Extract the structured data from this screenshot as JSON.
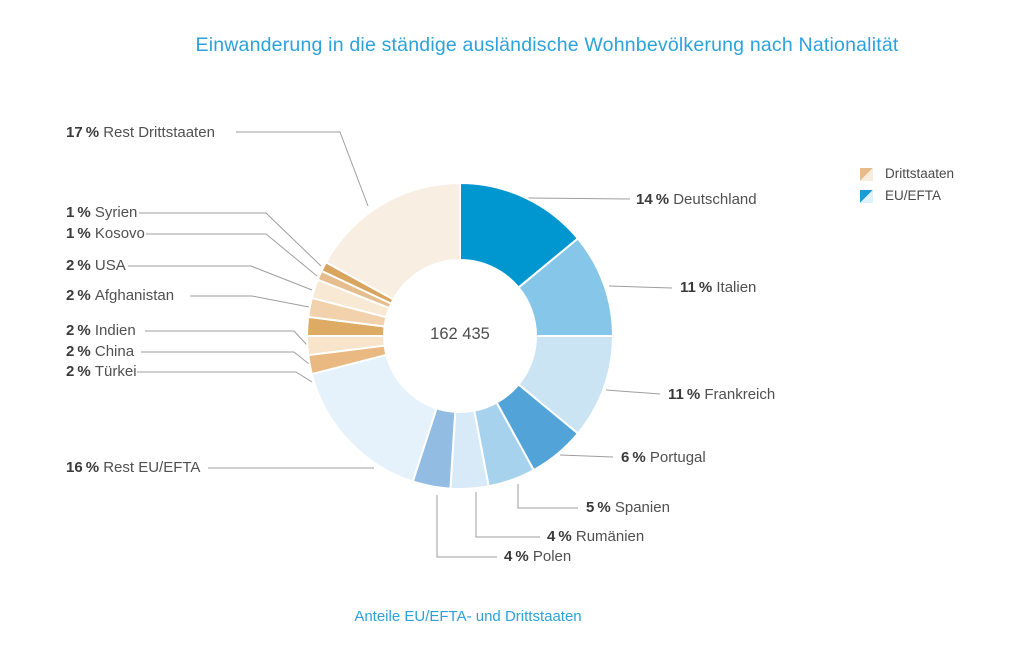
{
  "title": "Einwanderung in die ständige ausländische Wohnbevölkerung nach Nationalität",
  "subtitle": "Anteile EU/EFTA- und Drittstaaten",
  "legend": {
    "items": [
      {
        "label": "Drittstaaten",
        "color_dark": "#E8BC8A",
        "color_light": "#F8ECDC"
      },
      {
        "label": "EU/EFTA",
        "color_dark": "#1C9CD6",
        "color_light": "#DFF1FB"
      }
    ]
  },
  "colors": {
    "title_accent": "#2CA2DB",
    "leader_line": "#9E9E9E",
    "label_percent": "#3A3A3A",
    "label_name": "#505050",
    "center_text": "#4D4D4D"
  },
  "chart_data": {
    "type": "pie",
    "subtype": "donut",
    "title": "Einwanderung in die ständige ausländische Wohnbevölkerung nach Nationalität",
    "caption": "Anteile EU/EFTA- und Drittstaaten",
    "center_label": "162 435",
    "units": "%",
    "start_angle_deg": 0,
    "direction": "clockwise",
    "legend_position": "top-right",
    "segments": [
      {
        "label": "Deutschland",
        "value": 14,
        "group": "EU/EFTA",
        "color": "#0096D0"
      },
      {
        "label": "Italien",
        "value": 11,
        "group": "EU/EFTA",
        "color": "#86C6E8"
      },
      {
        "label": "Frankreich",
        "value": 11,
        "group": "EU/EFTA",
        "color": "#CAE4F4"
      },
      {
        "label": "Portugal",
        "value": 6,
        "group": "EU/EFTA",
        "color": "#52A4D8"
      },
      {
        "label": "Spanien",
        "value": 5,
        "group": "EU/EFTA",
        "color": "#A7D2ED"
      },
      {
        "label": "Rumänien",
        "value": 4,
        "group": "EU/EFTA",
        "color": "#D8EAF7"
      },
      {
        "label": "Polen",
        "value": 4,
        "group": "EU/EFTA",
        "color": "#93BCE3"
      },
      {
        "label": "Rest EU/EFTA",
        "value": 16,
        "group": "EU/EFTA",
        "color": "#E5F2FB"
      },
      {
        "label": "Türkei",
        "value": 2,
        "group": "Drittstaaten",
        "color": "#E9B981"
      },
      {
        "label": "China",
        "value": 2,
        "group": "Drittstaaten",
        "color": "#F8E3CB"
      },
      {
        "label": "Indien",
        "value": 2,
        "group": "Drittstaaten",
        "color": "#DDAB64"
      },
      {
        "label": "Afghanistan",
        "value": 2,
        "group": "Drittstaaten",
        "color": "#F1D2AD"
      },
      {
        "label": "USA",
        "value": 2,
        "group": "Drittstaaten",
        "color": "#F8E9D5"
      },
      {
        "label": "Kosovo",
        "value": 1,
        "group": "Drittstaaten",
        "color": "#E6BD8C"
      },
      {
        "label": "Syrien",
        "value": 1,
        "group": "Drittstaaten",
        "color": "#D9A55E"
      },
      {
        "label": "Rest Drittstaaten",
        "value": 17,
        "group": "Drittstaaten",
        "color": "#F8EEE2"
      }
    ]
  }
}
